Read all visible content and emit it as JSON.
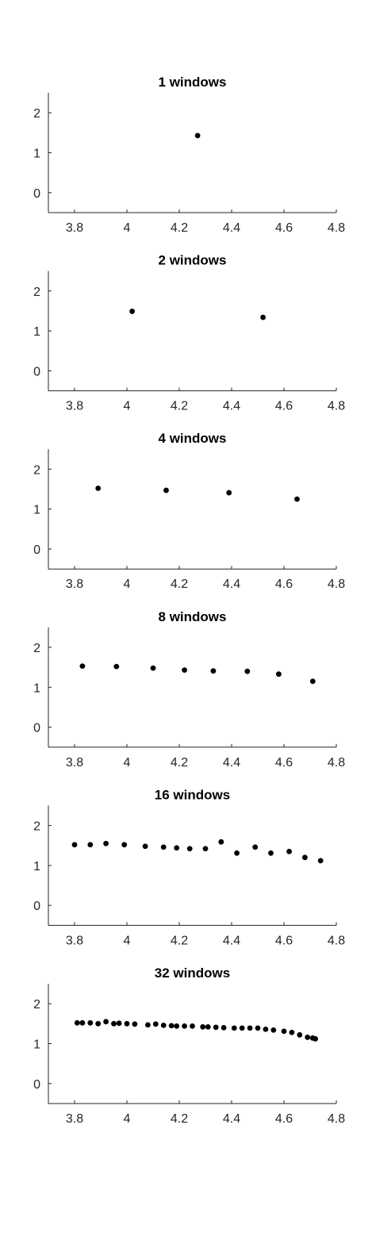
{
  "chart_data": [
    {
      "type": "scatter",
      "title": "1 windows",
      "xlabel": "",
      "ylabel": "",
      "xlim": [
        3.7,
        4.8
      ],
      "ylim": [
        -0.5,
        2.5
      ],
      "xticks": [
        "3.8",
        "4",
        "4.2",
        "4.4",
        "4.6",
        "4.8"
      ],
      "yticks": [
        "0",
        "1",
        "2"
      ],
      "grid": false,
      "points": [
        [
          4.27,
          1.43
        ]
      ]
    },
    {
      "type": "scatter",
      "title": "2 windows",
      "xlabel": "",
      "ylabel": "",
      "xlim": [
        3.7,
        4.8
      ],
      "ylim": [
        -0.5,
        2.5
      ],
      "xticks": [
        "3.8",
        "4",
        "4.2",
        "4.4",
        "4.6",
        "4.8"
      ],
      "yticks": [
        "0",
        "1",
        "2"
      ],
      "grid": false,
      "points": [
        [
          4.02,
          1.49
        ],
        [
          4.52,
          1.34
        ]
      ]
    },
    {
      "type": "scatter",
      "title": "4 windows",
      "xlabel": "",
      "ylabel": "",
      "xlim": [
        3.7,
        4.8
      ],
      "ylim": [
        -0.5,
        2.5
      ],
      "xticks": [
        "3.8",
        "4",
        "4.2",
        "4.4",
        "4.6",
        "4.8"
      ],
      "yticks": [
        "0",
        "1",
        "2"
      ],
      "grid": false,
      "points": [
        [
          3.89,
          1.52
        ],
        [
          4.15,
          1.47
        ],
        [
          4.39,
          1.41
        ],
        [
          4.65,
          1.25
        ]
      ]
    },
    {
      "type": "scatter",
      "title": "8 windows",
      "xlabel": "",
      "ylabel": "",
      "xlim": [
        3.7,
        4.8
      ],
      "ylim": [
        -0.5,
        2.5
      ],
      "xticks": [
        "3.8",
        "4",
        "4.2",
        "4.4",
        "4.6",
        "4.8"
      ],
      "yticks": [
        "0",
        "1",
        "2"
      ],
      "grid": false,
      "points": [
        [
          3.83,
          1.53
        ],
        [
          3.96,
          1.52
        ],
        [
          4.1,
          1.48
        ],
        [
          4.22,
          1.43
        ],
        [
          4.33,
          1.41
        ],
        [
          4.46,
          1.4
        ],
        [
          4.58,
          1.33
        ],
        [
          4.71,
          1.15
        ]
      ]
    },
    {
      "type": "scatter",
      "title": "16 windows",
      "xlabel": "",
      "ylabel": "",
      "xlim": [
        3.7,
        4.8
      ],
      "ylim": [
        -0.5,
        2.5
      ],
      "xticks": [
        "3.8",
        "4",
        "4.2",
        "4.4",
        "4.6",
        "4.8"
      ],
      "yticks": [
        "0",
        "1",
        "2"
      ],
      "grid": false,
      "points": [
        [
          3.8,
          1.52
        ],
        [
          3.86,
          1.52
        ],
        [
          3.92,
          1.55
        ],
        [
          3.99,
          1.52
        ],
        [
          4.07,
          1.48
        ],
        [
          4.14,
          1.46
        ],
        [
          4.19,
          1.44
        ],
        [
          4.24,
          1.42
        ],
        [
          4.3,
          1.42
        ],
        [
          4.36,
          1.59
        ],
        [
          4.42,
          1.31
        ],
        [
          4.49,
          1.46
        ],
        [
          4.55,
          1.31
        ],
        [
          4.62,
          1.35
        ],
        [
          4.68,
          1.2
        ],
        [
          4.74,
          1.12
        ]
      ]
    },
    {
      "type": "scatter",
      "title": "32 windows",
      "xlabel": "",
      "ylabel": "",
      "xlim": [
        3.7,
        4.8
      ],
      "ylim": [
        -0.5,
        2.5
      ],
      "xticks": [
        "3.8",
        "4",
        "4.2",
        "4.4",
        "4.6",
        "4.8"
      ],
      "yticks": [
        "0",
        "1",
        "2"
      ],
      "grid": false,
      "points": [
        [
          3.81,
          1.52
        ],
        [
          3.83,
          1.52
        ],
        [
          3.86,
          1.52
        ],
        [
          3.89,
          1.5
        ],
        [
          3.92,
          1.55
        ],
        [
          3.95,
          1.5
        ],
        [
          3.97,
          1.51
        ],
        [
          4.0,
          1.5
        ],
        [
          4.03,
          1.49
        ],
        [
          4.08,
          1.47
        ],
        [
          4.11,
          1.49
        ],
        [
          4.14,
          1.46
        ],
        [
          4.17,
          1.45
        ],
        [
          4.19,
          1.44
        ],
        [
          4.22,
          1.44
        ],
        [
          4.25,
          1.44
        ],
        [
          4.29,
          1.42
        ],
        [
          4.31,
          1.42
        ],
        [
          4.34,
          1.41
        ],
        [
          4.37,
          1.4
        ],
        [
          4.41,
          1.39
        ],
        [
          4.44,
          1.39
        ],
        [
          4.47,
          1.39
        ],
        [
          4.5,
          1.39
        ],
        [
          4.53,
          1.36
        ],
        [
          4.56,
          1.34
        ],
        [
          4.6,
          1.31
        ],
        [
          4.63,
          1.28
        ],
        [
          4.66,
          1.22
        ],
        [
          4.69,
          1.16
        ],
        [
          4.71,
          1.14
        ],
        [
          4.72,
          1.12
        ]
      ]
    }
  ]
}
